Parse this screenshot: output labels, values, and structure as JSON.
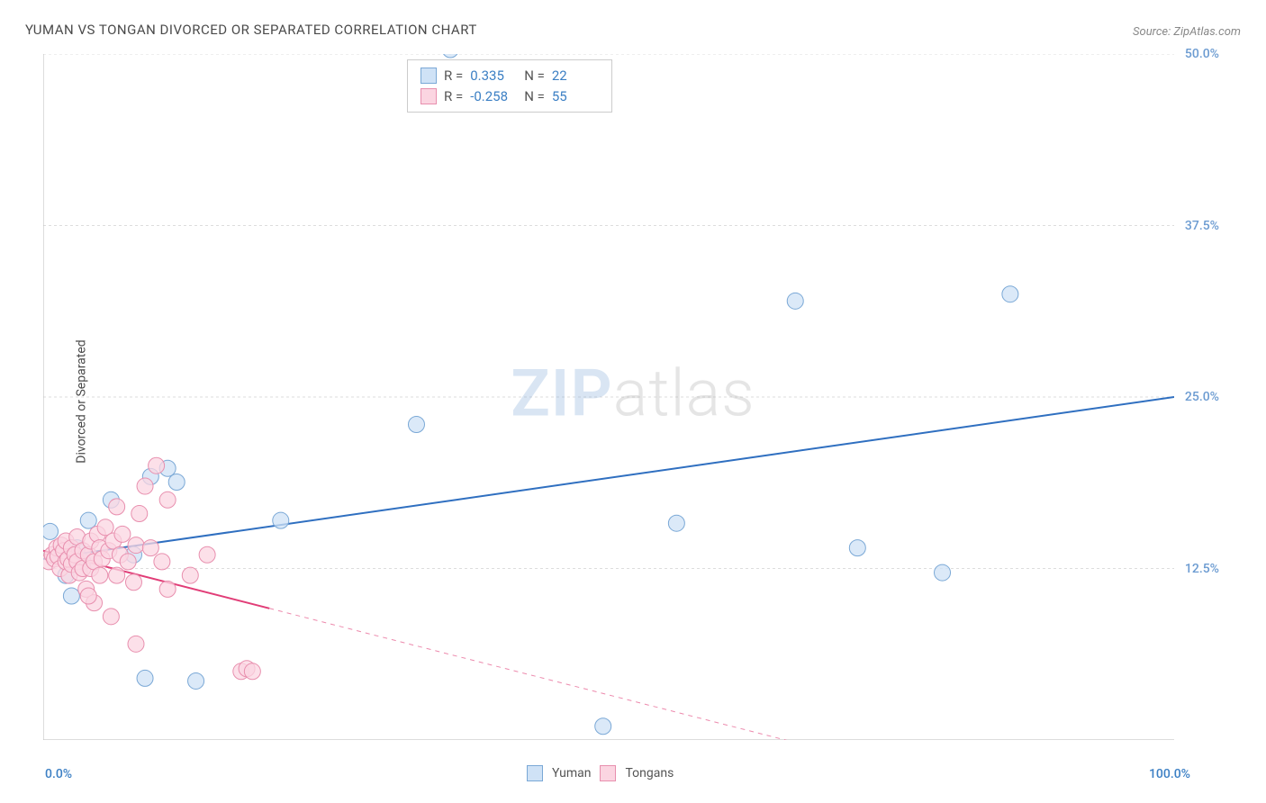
{
  "chart": {
    "type": "scatter",
    "title": "YUMAN VS TONGAN DIVORCED OR SEPARATED CORRELATION CHART",
    "source_text": "Source: ZipAtlas.com",
    "ylabel": "Divorced or Separated",
    "watermark_bold": "ZIP",
    "watermark_rest": "atlas",
    "xlim": [
      0,
      100
    ],
    "ylim": [
      0,
      50
    ],
    "x_min_label": "0.0%",
    "x_max_label": "100.0%",
    "x_color": "#3b7fc4",
    "yticks": [
      {
        "v": 12.5,
        "label": "12.5%"
      },
      {
        "v": 25.0,
        "label": "25.0%"
      },
      {
        "v": 37.5,
        "label": "37.5%"
      },
      {
        "v": 50.0,
        "label": "50.0%"
      }
    ],
    "ytick_color": "#6b9bd1",
    "grid_color": "#dddddd",
    "axis_color": "#bbbbbb",
    "background": "#ffffff",
    "marker_radius": 9,
    "marker_stroke_width": 1,
    "line_width": 2,
    "series": [
      {
        "name": "Yuman",
        "fill": "#cfe2f6",
        "stroke": "#7aa8d6",
        "line_color": "#2f6fc0",
        "R": "0.335",
        "N": "22",
        "points": [
          [
            0.6,
            15.2
          ],
          [
            2.0,
            12.0
          ],
          [
            2.5,
            10.5
          ],
          [
            3.5,
            13.0
          ],
          [
            4.0,
            16.0
          ],
          [
            6.0,
            17.5
          ],
          [
            8.0,
            13.5
          ],
          [
            9.5,
            19.2
          ],
          [
            11.0,
            19.8
          ],
          [
            11.8,
            18.8
          ],
          [
            9.0,
            4.5
          ],
          [
            13.5,
            4.3
          ],
          [
            21.0,
            16.0
          ],
          [
            36.0,
            51.0
          ],
          [
            33.0,
            23.0
          ],
          [
            49.5,
            1.0
          ],
          [
            56.0,
            15.8
          ],
          [
            72.0,
            14.0
          ],
          [
            66.5,
            32.0
          ],
          [
            79.5,
            12.2
          ],
          [
            85.5,
            32.5
          ],
          [
            3.0,
            14.0
          ]
        ],
        "trend": {
          "x1": 0,
          "y1": 13.2,
          "x2": 100,
          "y2": 25.0,
          "dashed": false,
          "dash_from": 100
        }
      },
      {
        "name": "Tongans",
        "fill": "#fbd5e1",
        "stroke": "#e88fae",
        "line_color": "#e13d77",
        "R": "-0.258",
        "N": "55",
        "points": [
          [
            0.5,
            13.0
          ],
          [
            0.8,
            13.5
          ],
          [
            1.0,
            13.2
          ],
          [
            1.2,
            14.0
          ],
          [
            1.3,
            13.4
          ],
          [
            1.5,
            12.5
          ],
          [
            1.6,
            14.2
          ],
          [
            1.8,
            13.8
          ],
          [
            2.0,
            13.0
          ],
          [
            2.0,
            14.5
          ],
          [
            2.2,
            13.2
          ],
          [
            2.3,
            12.0
          ],
          [
            2.5,
            14.0
          ],
          [
            2.5,
            12.8
          ],
          [
            2.8,
            13.5
          ],
          [
            3.0,
            13.0
          ],
          [
            3.0,
            14.8
          ],
          [
            3.2,
            12.2
          ],
          [
            3.5,
            13.8
          ],
          [
            3.5,
            12.5
          ],
          [
            3.8,
            11.0
          ],
          [
            4.0,
            13.5
          ],
          [
            4.2,
            14.5
          ],
          [
            4.2,
            12.5
          ],
          [
            4.5,
            13.0
          ],
          [
            4.5,
            10.0
          ],
          [
            4.8,
            15.0
          ],
          [
            5.0,
            14.0
          ],
          [
            5.0,
            12.0
          ],
          [
            5.2,
            13.2
          ],
          [
            5.5,
            15.5
          ],
          [
            5.8,
            13.8
          ],
          [
            6.0,
            9.0
          ],
          [
            6.2,
            14.5
          ],
          [
            6.5,
            17.0
          ],
          [
            6.5,
            12.0
          ],
          [
            6.8,
            13.5
          ],
          [
            7.0,
            15.0
          ],
          [
            7.5,
            13.0
          ],
          [
            8.0,
            11.5
          ],
          [
            8.2,
            14.2
          ],
          [
            8.2,
            7.0
          ],
          [
            8.5,
            16.5
          ],
          [
            9.0,
            18.5
          ],
          [
            9.5,
            14.0
          ],
          [
            10.0,
            20.0
          ],
          [
            10.5,
            13.0
          ],
          [
            11.0,
            11.0
          ],
          [
            11.0,
            17.5
          ],
          [
            13.0,
            12.0
          ],
          [
            14.5,
            13.5
          ],
          [
            17.5,
            5.0
          ],
          [
            18.0,
            5.2
          ],
          [
            18.5,
            5.0
          ],
          [
            4.0,
            10.5
          ]
        ],
        "trend": {
          "x1": 0,
          "y1": 13.8,
          "x2": 68,
          "y2": -0.5,
          "dashed": true,
          "dash_from": 20
        }
      }
    ],
    "legend_top_labels": {
      "r": "R =",
      "n": "N ="
    },
    "legend_bottom": [
      {
        "name": "Yuman",
        "fill": "#cfe2f6",
        "stroke": "#7aa8d6"
      },
      {
        "name": "Tongans",
        "fill": "#fbd5e1",
        "stroke": "#e88fae"
      }
    ]
  }
}
